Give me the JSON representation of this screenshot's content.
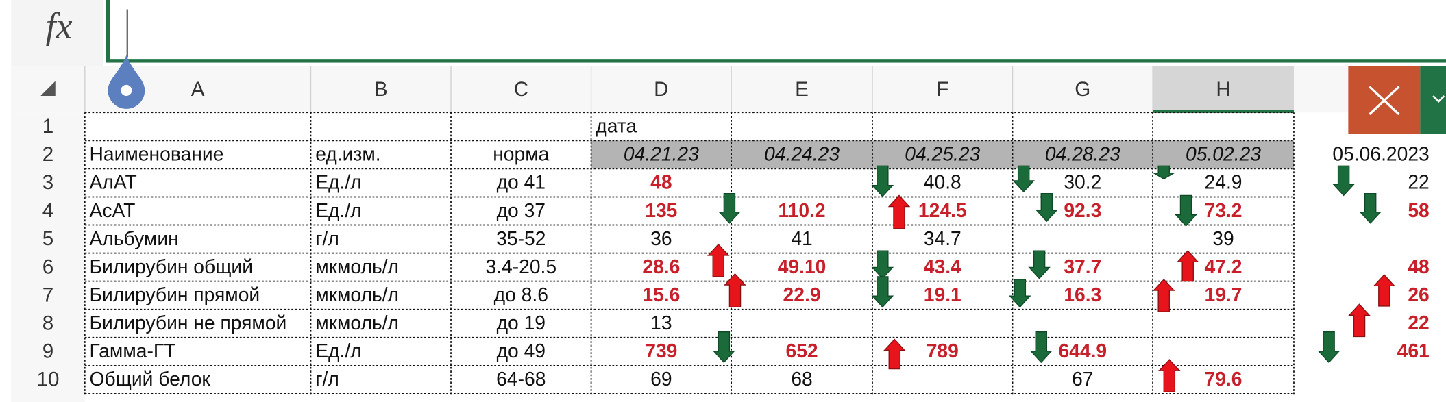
{
  "formula_bar": {
    "label": "fx"
  },
  "columns": [
    "A",
    "B",
    "C",
    "D",
    "E",
    "F",
    "G",
    "H"
  ],
  "rows": [
    "1",
    "2",
    "3",
    "4",
    "5",
    "6",
    "7",
    "8",
    "9",
    "10"
  ],
  "cells": [
    [
      null,
      null,
      null,
      "дата",
      null,
      null,
      null,
      null,
      null
    ],
    [
      "Наименование",
      "ед.изм.",
      "норма",
      "04.21.23",
      "04.24.23",
      "04.25.23",
      "04.28.23",
      "05.02.23",
      "05.06.2023"
    ],
    [
      "АлАТ",
      "Ед./л",
      "до 41",
      "48",
      null,
      "40.8",
      "30.2",
      "24.9",
      "22"
    ],
    [
      "АсАТ",
      "Ед./л",
      "до 37",
      "135",
      "110.2",
      "124.5",
      "92.3",
      "73.2",
      "58"
    ],
    [
      "Альбумин",
      "г/л",
      "35-52",
      "36",
      "41",
      "34.7",
      null,
      "39",
      null
    ],
    [
      "Билирубин общий",
      "мкмоль/л",
      "3.4-20.5",
      "28.6",
      "49.10",
      "43.4",
      "37.7",
      "47.2",
      "48"
    ],
    [
      "Билирубин прямой",
      "мкмоль/л",
      "до 8.6",
      "15.6",
      "22.9",
      "19.1",
      "16.3",
      "19.7",
      "26"
    ],
    [
      "Билирубин не прямой",
      "мкмоль/л",
      "до 19",
      "13",
      null,
      null,
      null,
      null,
      "22"
    ],
    [
      "Гамма-ГТ",
      "Ед./л",
      "до 49",
      "739",
      "652",
      "789",
      "644.9",
      null,
      "461"
    ],
    [
      "Общий белок",
      "г/л",
      "64-68",
      "69",
      "68",
      null,
      "67",
      "79.6",
      null
    ]
  ]
}
